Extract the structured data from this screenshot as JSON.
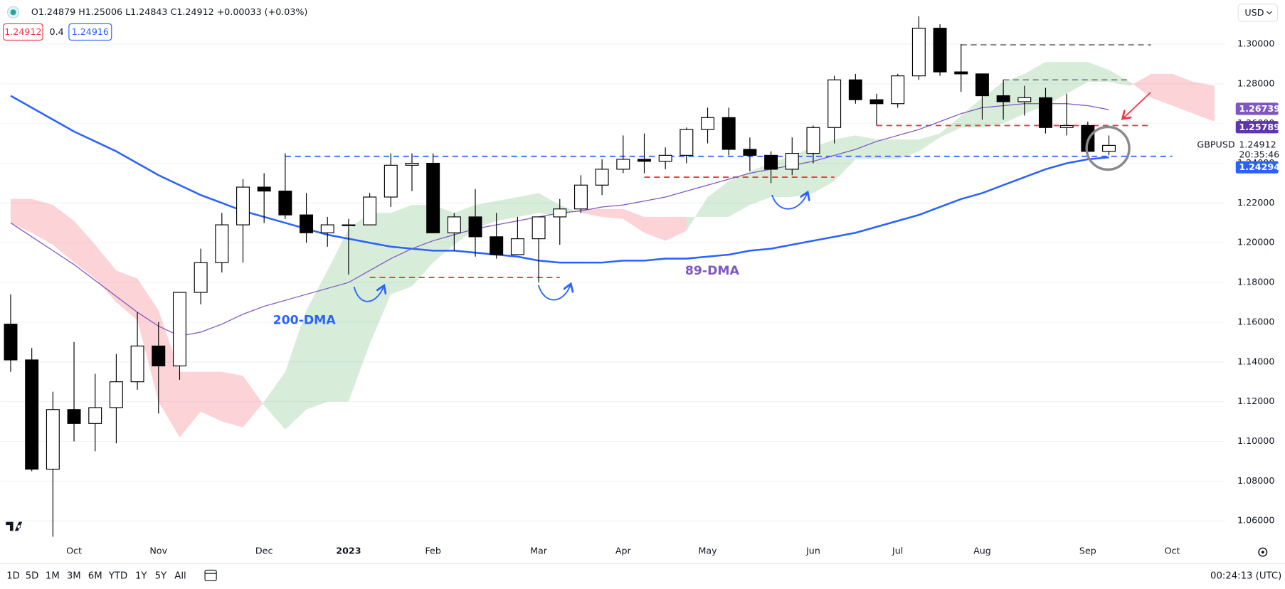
{
  "header": {
    "ohlc": "O1.24879 H1.25006 L1.24843 C1.24912 +0.00033 (+0.03%)",
    "bid": "1.24912",
    "spread": "0.4",
    "ask": "1.24916"
  },
  "toolbar": {
    "ranges": [
      "1D",
      "5D",
      "1M",
      "3M",
      "6M",
      "YTD",
      "1Y",
      "5Y",
      "All"
    ],
    "clock": "00:24:13 (UTC)"
  },
  "chart_data": {
    "type": "candlestick",
    "currency": "USD",
    "categories": [
      null,
      null,
      null,
      "Oct",
      null,
      null,
      null,
      "Nov",
      null,
      null,
      null,
      null,
      "Dec",
      null,
      null,
      null,
      "2023",
      null,
      null,
      null,
      "Feb",
      null,
      null,
      null,
      null,
      "Mar",
      null,
      null,
      null,
      "Apr",
      null,
      null,
      null,
      "May",
      null,
      null,
      null,
      null,
      "Jun",
      null,
      null,
      null,
      "Jul",
      null,
      null,
      null,
      "Aug",
      null,
      null,
      null,
      null,
      "Sep",
      null,
      null,
      null,
      "Oct",
      null,
      null
    ],
    "open": [
      1.159,
      1.141,
      1.086,
      1.116,
      1.109,
      1.117,
      1.13,
      1.148,
      1.138,
      1.175,
      1.19,
      1.209,
      1.228,
      1.226,
      1.214,
      1.205,
      1.209,
      1.209,
      1.223,
      1.239,
      1.24,
      1.205,
      1.213,
      1.203,
      1.194,
      1.202,
      1.213,
      1.217,
      1.229,
      1.237,
      1.242,
      1.241,
      1.244,
      1.257,
      1.263,
      1.247,
      1.244,
      1.237,
      1.245,
      1.258,
      1.282,
      1.272,
      1.27,
      1.284,
      1.308,
      1.286,
      1.285,
      1.274,
      1.271,
      1.273,
      1.258,
      1.259,
      1.246,
      null,
      null,
      null,
      null,
      null
    ],
    "high": [
      1.174,
      1.147,
      1.125,
      1.15,
      1.134,
      1.144,
      1.165,
      1.16,
      1.175,
      1.197,
      1.215,
      1.232,
      1.235,
      1.245,
      1.225,
      1.213,
      1.212,
      1.225,
      1.245,
      1.245,
      1.245,
      1.215,
      1.227,
      1.215,
      1.213,
      1.213,
      1.222,
      1.234,
      1.242,
      1.254,
      1.255,
      1.248,
      1.258,
      1.268,
      1.268,
      1.253,
      1.246,
      1.253,
      1.259,
      1.284,
      1.285,
      1.275,
      1.285,
      1.314,
      1.31,
      1.3,
      1.285,
      1.282,
      1.279,
      1.278,
      1.275,
      1.261,
      1.254,
      null,
      null,
      null,
      null,
      null
    ],
    "low": [
      1.135,
      1.085,
      1.052,
      1.1,
      1.095,
      1.099,
      1.126,
      1.114,
      1.131,
      1.169,
      1.185,
      1.19,
      1.21,
      1.212,
      1.2,
      1.198,
      1.184,
      1.209,
      1.218,
      1.226,
      1.205,
      1.196,
      1.193,
      1.192,
      1.194,
      1.18,
      1.199,
      1.215,
      1.224,
      1.235,
      1.235,
      1.237,
      1.24,
      1.25,
      1.244,
      1.236,
      1.23,
      1.234,
      1.24,
      1.25,
      1.27,
      1.259,
      1.268,
      1.282,
      1.284,
      1.276,
      1.262,
      1.262,
      1.264,
      1.255,
      1.254,
      1.244,
      1.244,
      null,
      null,
      null,
      null,
      null
    ],
    "close": [
      1.141,
      1.086,
      1.116,
      1.109,
      1.117,
      1.13,
      1.148,
      1.138,
      1.175,
      1.19,
      1.209,
      1.228,
      1.226,
      1.214,
      1.205,
      1.209,
      1.209,
      1.223,
      1.239,
      1.24,
      1.205,
      1.213,
      1.203,
      1.194,
      1.202,
      1.213,
      1.217,
      1.229,
      1.237,
      1.242,
      1.241,
      1.244,
      1.257,
      1.263,
      1.247,
      1.244,
      1.237,
      1.245,
      1.258,
      1.282,
      1.272,
      1.27,
      1.284,
      1.308,
      1.286,
      1.285,
      1.274,
      1.271,
      1.273,
      1.258,
      1.259,
      1.246,
      1.249,
      null,
      null,
      null,
      null,
      null
    ],
    "up_color": "#ffffff",
    "down_color": "#000000",
    "series": [
      {
        "name": "200-DMA",
        "color": "#2962ff",
        "values": [
          1.274,
          1.268,
          1.262,
          1.256,
          1.251,
          1.246,
          1.24,
          1.234,
          1.229,
          1.224,
          1.22,
          1.216,
          1.213,
          1.21,
          1.207,
          1.204,
          1.202,
          1.2,
          1.198,
          1.197,
          1.196,
          1.196,
          1.195,
          1.194,
          1.193,
          1.191,
          1.19,
          1.19,
          1.19,
          1.191,
          1.191,
          1.192,
          1.192,
          1.193,
          1.194,
          1.196,
          1.197,
          1.199,
          1.201,
          1.203,
          1.205,
          1.208,
          1.211,
          1.214,
          1.218,
          1.222,
          1.225,
          1.229,
          1.233,
          1.237,
          1.24,
          1.242,
          1.243,
          null,
          null,
          null,
          null,
          null
        ]
      },
      {
        "name": "89-DMA",
        "color": "#7e57c2",
        "values": [
          1.21,
          1.203,
          1.196,
          1.189,
          1.181,
          1.173,
          1.165,
          1.158,
          1.153,
          1.155,
          1.159,
          1.164,
          1.168,
          1.171,
          1.174,
          1.177,
          1.18,
          1.186,
          1.192,
          1.197,
          1.201,
          1.204,
          1.207,
          1.209,
          1.211,
          1.213,
          1.215,
          1.216,
          1.218,
          1.219,
          1.221,
          1.223,
          1.226,
          1.229,
          1.232,
          1.235,
          1.237,
          1.239,
          1.241,
          1.244,
          1.247,
          1.251,
          1.254,
          1.257,
          1.261,
          1.265,
          1.268,
          1.269,
          1.27,
          1.27,
          1.27,
          1.269,
          1.267,
          null,
          null,
          null,
          null,
          null
        ]
      }
    ],
    "cloud": {
      "span_a": [
        1.21,
        1.205,
        1.199,
        1.19,
        1.182,
        1.17,
        1.161,
        1.12,
        1.102,
        1.115,
        1.11,
        1.107,
        1.12,
        1.135,
        1.166,
        1.186,
        1.207,
        1.215,
        1.215,
        1.219,
        1.219,
        1.215,
        1.219,
        1.221,
        1.223,
        1.225,
        1.219,
        1.215,
        1.213,
        1.212,
        1.205,
        1.201,
        1.206,
        1.223,
        1.231,
        1.236,
        1.24,
        1.244,
        1.248,
        1.252,
        1.254,
        1.252,
        1.252,
        1.252,
        1.255,
        1.264,
        1.273,
        1.281,
        1.285,
        1.291,
        1.291,
        1.291,
        1.287,
        1.281,
        1.273,
        1.269,
        1.265,
        1.261
      ],
      "span_b": [
        1.222,
        1.222,
        1.219,
        1.211,
        1.199,
        1.186,
        1.182,
        1.166,
        1.135,
        1.135,
        1.135,
        1.133,
        1.118,
        1.106,
        1.116,
        1.12,
        1.12,
        1.149,
        1.174,
        1.178,
        1.19,
        1.199,
        1.207,
        1.211,
        1.213,
        1.215,
        1.213,
        1.217,
        1.217,
        1.217,
        1.213,
        1.213,
        1.213,
        1.213,
        1.213,
        1.219,
        1.223,
        1.223,
        1.225,
        1.231,
        1.242,
        1.242,
        1.242,
        1.246,
        1.253,
        1.258,
        1.258,
        1.26,
        1.265,
        1.269,
        1.275,
        1.281,
        1.281,
        1.279,
        1.285,
        1.285,
        1.281,
        1.279
      ],
      "up_color": "rgba(76,175,80,0.22)",
      "down_color": "rgba(242,54,69,0.22)"
    },
    "levels": [
      {
        "value": 1.2435,
        "start": 13,
        "end": 55,
        "color": "#2962ff"
      },
      {
        "value": 1.1825,
        "start": 17,
        "end": 26,
        "color": "#f23645"
      },
      {
        "value": 1.233,
        "start": 30,
        "end": 39,
        "color": "#f23645"
      },
      {
        "value": 1.259,
        "start": 41,
        "end": 54,
        "color": "#f23645"
      },
      {
        "value": 1.2996,
        "start": 45,
        "end": 54,
        "color": "#808080"
      },
      {
        "value": 1.282,
        "start": 47,
        "end": 53,
        "color": "#808080"
      }
    ],
    "ylim": [
      1.05,
      1.3222
    ],
    "yticks": [
      {
        "value": 1.06,
        "label": "1.06000"
      },
      {
        "value": 1.08,
        "label": "1.08000"
      },
      {
        "value": 1.1,
        "label": "1.10000"
      },
      {
        "value": 1.12,
        "label": "1.12000"
      },
      {
        "value": 1.14,
        "label": "1.14000"
      },
      {
        "value": 1.16,
        "label": "1.16000"
      },
      {
        "value": 1.18,
        "label": "1.18000"
      },
      {
        "value": 1.2,
        "label": "1.20000"
      },
      {
        "value": 1.22,
        "label": "1.22000"
      },
      {
        "value": 1.24,
        "label": "1.24000"
      },
      {
        "value": 1.26,
        "label": "1.26000"
      },
      {
        "value": 1.28,
        "label": "1.28000"
      },
      {
        "value": 1.3,
        "label": "1.30000"
      }
    ],
    "grid": true,
    "price_labels": [
      {
        "value": 1.26739,
        "label": "1.26739",
        "color": "#7e57c2"
      },
      {
        "value": 1.25789,
        "label": "1.25789",
        "color": "#5e35b1"
      },
      {
        "value": 1.24294,
        "label": "1.24294",
        "color": "#2962ff"
      }
    ],
    "last_price": {
      "symbol": "GBPUSD",
      "value": 1.24912,
      "label": "1.24912",
      "countdown": "20:35:46"
    }
  }
}
